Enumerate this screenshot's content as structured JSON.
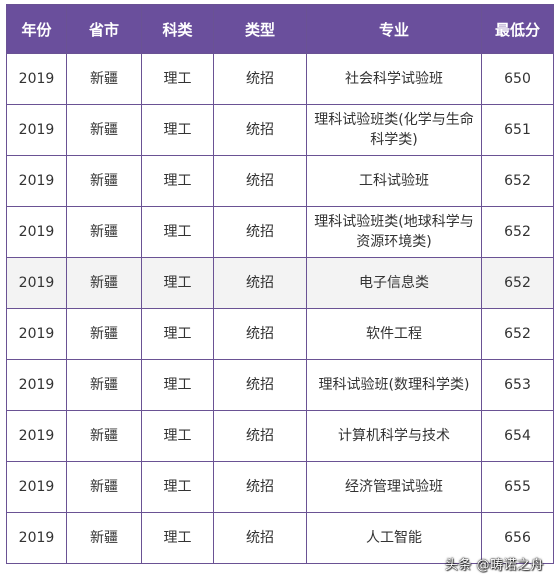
{
  "table": {
    "headers": [
      "年份",
      "省市",
      "科类",
      "类型",
      "专业",
      "最低分"
    ],
    "rows": [
      {
        "year": "2019",
        "province": "新疆",
        "subject": "理工",
        "type": "统招",
        "major": "社会科学试验班",
        "min_score": "650",
        "shaded": false
      },
      {
        "year": "2019",
        "province": "新疆",
        "subject": "理工",
        "type": "统招",
        "major": "理科试验班类(化学与生命科学类)",
        "min_score": "651",
        "shaded": false
      },
      {
        "year": "2019",
        "province": "新疆",
        "subject": "理工",
        "type": "统招",
        "major": "工科试验班",
        "min_score": "652",
        "shaded": false
      },
      {
        "year": "2019",
        "province": "新疆",
        "subject": "理工",
        "type": "统招",
        "major": "理科试验班类(地球科学与资源环境类)",
        "min_score": "652",
        "shaded": false
      },
      {
        "year": "2019",
        "province": "新疆",
        "subject": "理工",
        "type": "统招",
        "major": "电子信息类",
        "min_score": "652",
        "shaded": true
      },
      {
        "year": "2019",
        "province": "新疆",
        "subject": "理工",
        "type": "统招",
        "major": "软件工程",
        "min_score": "652",
        "shaded": false
      },
      {
        "year": "2019",
        "province": "新疆",
        "subject": "理工",
        "type": "统招",
        "major": "理科试验班(数理科学类)",
        "min_score": "653",
        "shaded": false
      },
      {
        "year": "2019",
        "province": "新疆",
        "subject": "理工",
        "type": "统招",
        "major": "计算机科学与技术",
        "min_score": "654",
        "shaded": false
      },
      {
        "year": "2019",
        "province": "新疆",
        "subject": "理工",
        "type": "统招",
        "major": "经济管理试验班",
        "min_score": "655",
        "shaded": false
      },
      {
        "year": "2019",
        "province": "新疆",
        "subject": "理工",
        "type": "统招",
        "major": "人工智能",
        "min_score": "656",
        "shaded": false
      }
    ]
  },
  "watermark": {
    "text": "头条 @畴诺之舟"
  },
  "colors": {
    "header_bg": "#6a4f9c",
    "border": "#6a5294",
    "shaded_row": "#f3f3f3"
  }
}
